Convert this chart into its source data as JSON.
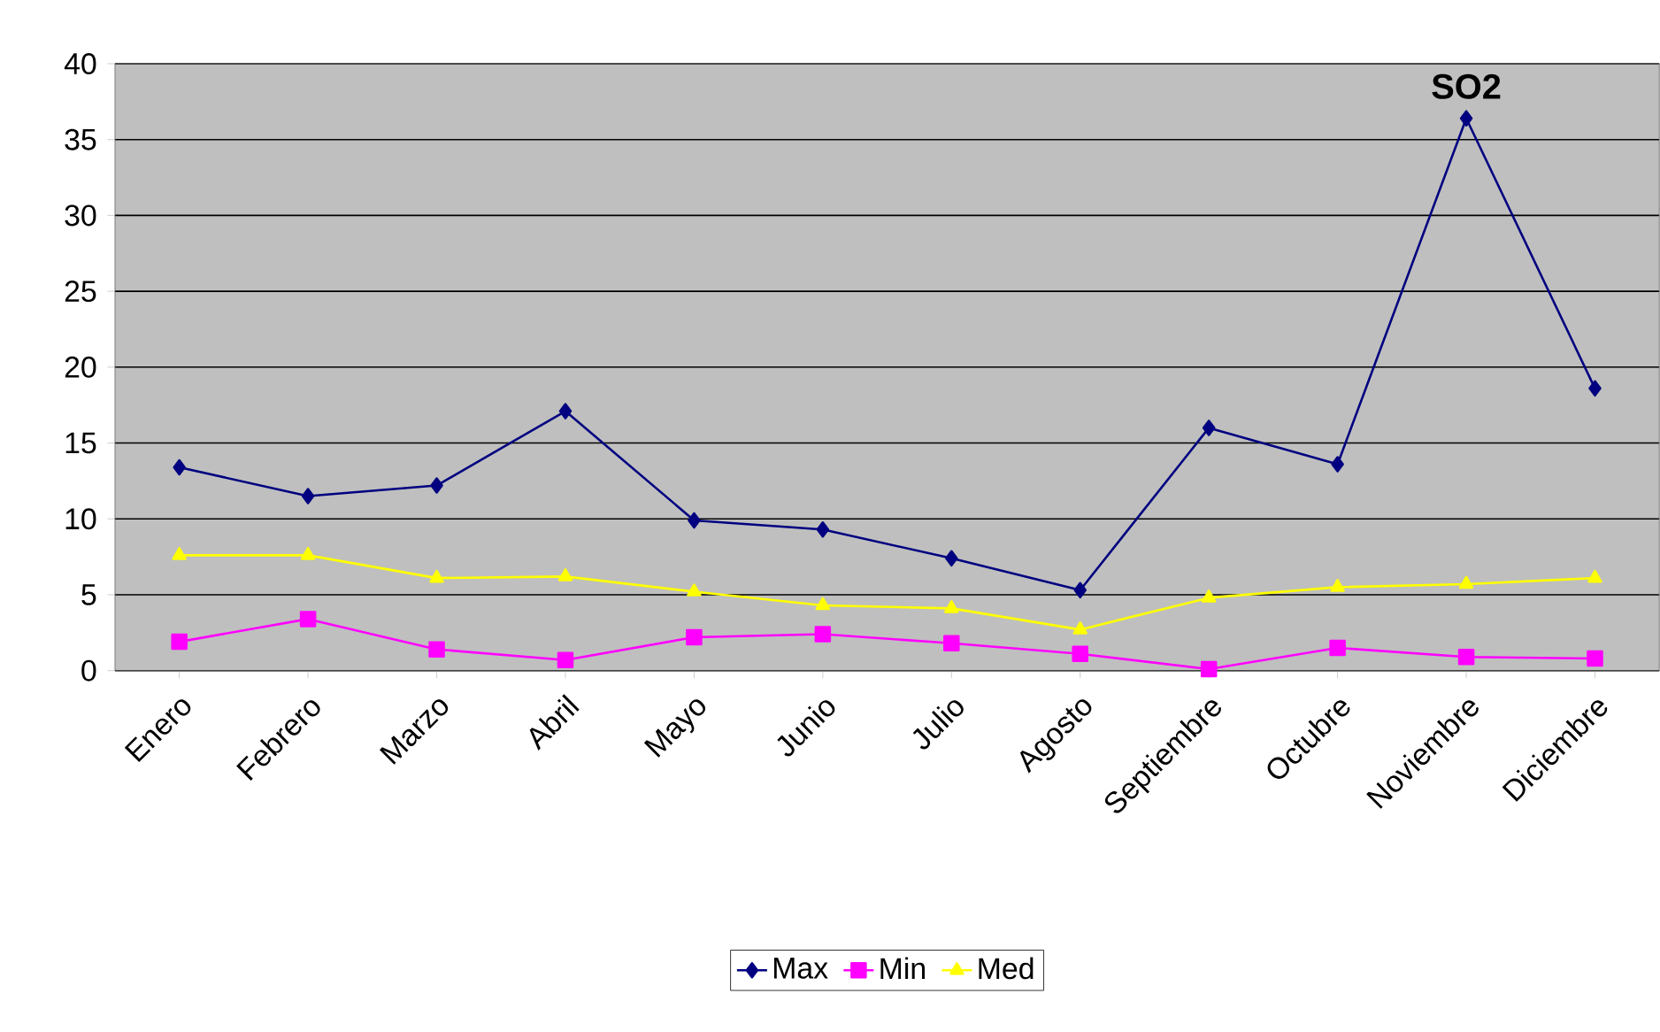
{
  "chart_data": {
    "type": "line",
    "title": "SO2",
    "categories": [
      "Enero",
      "Febrero",
      "Marzo",
      "Abril",
      "Mayo",
      "Junio",
      "Julio",
      "Agosto",
      "Septiembre",
      "Octubre",
      "Noviembre",
      "Diciembre"
    ],
    "series": [
      {
        "name": "Max",
        "color": "#000080",
        "marker": "diamond",
        "values": [
          13.4,
          11.5,
          12.2,
          17.1,
          9.9,
          9.3,
          7.4,
          5.3,
          16.0,
          13.6,
          36.4,
          18.6
        ]
      },
      {
        "name": "Min",
        "color": "#ff00ff",
        "marker": "square",
        "values": [
          1.9,
          3.4,
          1.4,
          0.7,
          2.2,
          2.4,
          1.8,
          1.1,
          0.1,
          1.5,
          0.9,
          0.8
        ]
      },
      {
        "name": "Med",
        "color": "#ffff00",
        "marker": "triangle",
        "values": [
          7.6,
          7.6,
          6.1,
          6.2,
          5.2,
          4.3,
          4.1,
          2.7,
          4.8,
          5.5,
          5.7,
          6.1
        ]
      }
    ],
    "ylim": [
      0,
      40
    ],
    "yticks": [
      0,
      5,
      10,
      15,
      20,
      25,
      30,
      35,
      40
    ],
    "grid": "y",
    "legend": "bottom",
    "line_style": "solid"
  }
}
